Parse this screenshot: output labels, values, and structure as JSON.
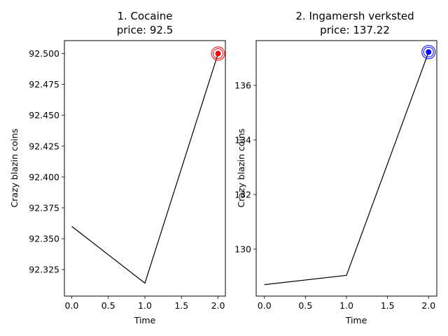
{
  "chart_data": [
    {
      "type": "line",
      "title_line1": "1. Cocaine",
      "title_line2": "price: 92.5",
      "xlabel": "Time",
      "ylabel": "Crazy blazin coins",
      "x": [
        0,
        1,
        2
      ],
      "values": [
        92.36,
        92.314,
        92.5
      ],
      "xlim": [
        -0.1,
        2.1
      ],
      "ylim": [
        92.3035,
        92.5105
      ],
      "xticks": [
        0.0,
        0.5,
        1.0,
        1.5,
        2.0
      ],
      "xtick_labels": [
        "0.0",
        "0.5",
        "1.0",
        "1.5",
        "2.0"
      ],
      "yticks": [
        92.325,
        92.35,
        92.375,
        92.4,
        92.425,
        92.45,
        92.475,
        92.5
      ],
      "ytick_labels": [
        "92.325",
        "92.350",
        "92.375",
        "92.400",
        "92.425",
        "92.450",
        "92.475",
        "92.500"
      ],
      "highlight_point": {
        "x": 2,
        "y": 92.5
      },
      "marker_color": "#ff0000",
      "line_color": "#000000",
      "grid": false
    },
    {
      "type": "line",
      "title_line1": "2. Ingamersh verksted",
      "title_line2": "price: 137.22",
      "xlabel": "Time",
      "ylabel": "Crazy blazin coins",
      "x": [
        0,
        1,
        2
      ],
      "values": [
        128.7,
        129.04,
        137.22
      ],
      "xlim": [
        -0.1,
        2.1
      ],
      "ylim": [
        128.28,
        137.64
      ],
      "xticks": [
        0.0,
        0.5,
        1.0,
        1.5,
        2.0
      ],
      "xtick_labels": [
        "0.0",
        "0.5",
        "1.0",
        "1.5",
        "2.0"
      ],
      "yticks": [
        130,
        132,
        134,
        136
      ],
      "ytick_labels": [
        "130",
        "132",
        "134",
        "136"
      ],
      "highlight_point": {
        "x": 2,
        "y": 137.22
      },
      "marker_color": "#0000ff",
      "line_color": "#000000",
      "grid": false
    }
  ]
}
